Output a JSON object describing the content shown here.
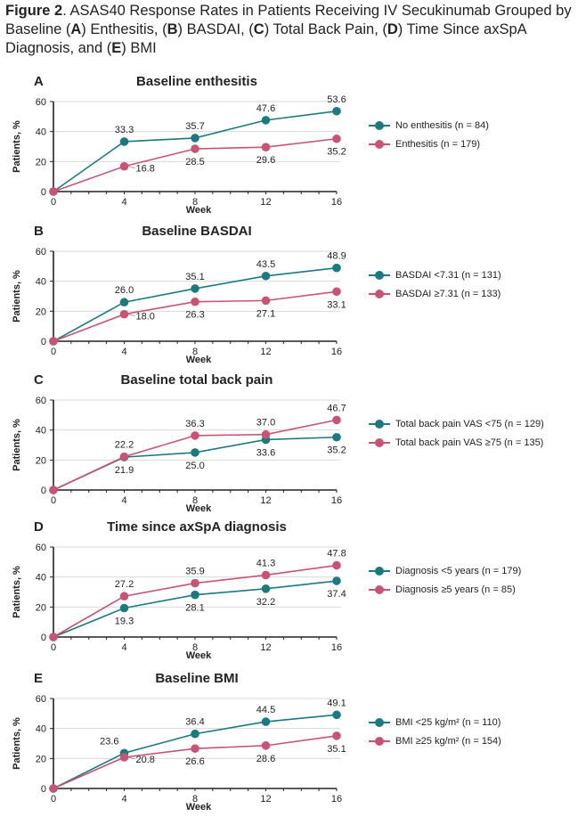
{
  "caption": {
    "figure_label": "Figure 2",
    "parts": [
      {
        "text": ". ASAS40 Response Rates in Patients Receiving IV Secukinumab Grouped by Baseline (",
        "bold": false
      },
      {
        "text": "A",
        "bold": true
      },
      {
        "text": ") Enthesitis, (",
        "bold": false
      },
      {
        "text": "B",
        "bold": true
      },
      {
        "text": ") BASDAI, (",
        "bold": false
      },
      {
        "text": "C",
        "bold": true
      },
      {
        "text": ") Total Back Pain, (",
        "bold": false
      },
      {
        "text": "D",
        "bold": true
      },
      {
        "text": ") Time Since axSpA Diagnosis, and (",
        "bold": false
      },
      {
        "text": "E",
        "bold": true
      },
      {
        "text": ") BMI",
        "bold": false
      }
    ]
  },
  "colors": {
    "teal": "#1a7a80",
    "pink": "#c95374",
    "grid": "#d9d9d9",
    "axis": "#222222"
  },
  "chart_data": [
    {
      "type": "line",
      "panel_letter": "A",
      "title": "Baseline enthesitis",
      "xlabel": "Week",
      "ylabel": "Patients, %",
      "x": [
        0,
        4,
        8,
        12,
        16
      ],
      "xticks": [
        "0",
        "4",
        "8",
        "12",
        "16"
      ],
      "yticks": [
        "0",
        "20",
        "40",
        "60"
      ],
      "ylim": [
        0,
        60
      ],
      "xlim": [
        0,
        16
      ],
      "grid": true,
      "legend_position": "right",
      "series": [
        {
          "name": "No enthesitis (n = 84)",
          "color": "teal",
          "values": [
            0,
            33.3,
            35.7,
            47.6,
            53.6
          ],
          "labels": [
            "",
            "33.3",
            "35.7",
            "47.6",
            "53.6"
          ],
          "label_pos": [
            "",
            "above",
            "above",
            "above",
            "above"
          ]
        },
        {
          "name": "Enthesitis (n = 179)",
          "color": "pink",
          "values": [
            0,
            16.8,
            28.5,
            29.6,
            35.2
          ],
          "labels": [
            "",
            "16.8",
            "28.5",
            "29.6",
            "35.2"
          ],
          "label_pos": [
            "",
            "right",
            "below",
            "below",
            "below"
          ]
        }
      ]
    },
    {
      "type": "line",
      "panel_letter": "B",
      "title": "Baseline BASDAI",
      "xlabel": "Week",
      "ylabel": "Patients, %",
      "x": [
        0,
        4,
        8,
        12,
        16
      ],
      "xticks": [
        "0",
        "4",
        "8",
        "12",
        "16"
      ],
      "yticks": [
        "0",
        "20",
        "40",
        "60"
      ],
      "ylim": [
        0,
        60
      ],
      "xlim": [
        0,
        16
      ],
      "grid": true,
      "legend_position": "right",
      "series": [
        {
          "name": "BASDAI <7.31 (n = 131)",
          "color": "teal",
          "values": [
            0,
            26.0,
            35.1,
            43.5,
            48.9
          ],
          "labels": [
            "",
            "26.0",
            "35.1",
            "43.5",
            "48.9"
          ],
          "label_pos": [
            "",
            "above",
            "above",
            "above",
            "above"
          ]
        },
        {
          "name": "BASDAI ≥7.31 (n = 133)",
          "color": "pink",
          "values": [
            0,
            18.0,
            26.3,
            27.1,
            33.1
          ],
          "labels": [
            "",
            "18.0",
            "26.3",
            "27.1",
            "33.1"
          ],
          "label_pos": [
            "",
            "right",
            "below",
            "below",
            "below"
          ]
        }
      ]
    },
    {
      "type": "line",
      "panel_letter": "C",
      "title": "Baseline total back pain",
      "xlabel": "Week",
      "ylabel": "Patients, %",
      "x": [
        0,
        4,
        8,
        12,
        16
      ],
      "xticks": [
        "0",
        "4",
        "8",
        "12",
        "16"
      ],
      "yticks": [
        "0",
        "20",
        "40",
        "60"
      ],
      "ylim": [
        0,
        60
      ],
      "xlim": [
        0,
        16
      ],
      "grid": true,
      "legend_position": "right",
      "series": [
        {
          "name": "Total back pain VAS <75 (n = 129)",
          "color": "teal",
          "values": [
            0,
            21.9,
            25.0,
            33.6,
            35.2
          ],
          "labels": [
            "",
            "21.9",
            "25.0",
            "33.6",
            "35.2"
          ],
          "label_pos": [
            "",
            "below",
            "below",
            "below",
            "below"
          ]
        },
        {
          "name": "Total back pain VAS ≥75 (n = 135)",
          "color": "pink",
          "values": [
            0,
            22.2,
            36.3,
            37.0,
            46.7
          ],
          "labels": [
            "",
            "22.2",
            "36.3",
            "37.0",
            "46.7"
          ],
          "label_pos": [
            "",
            "above",
            "above",
            "above",
            "above"
          ]
        }
      ]
    },
    {
      "type": "line",
      "panel_letter": "D",
      "title": "Time since axSpA diagnosis",
      "xlabel": "Week",
      "ylabel": "Patients, %",
      "x": [
        0,
        4,
        8,
        12,
        16
      ],
      "xticks": [
        "0",
        "4",
        "8",
        "12",
        "16"
      ],
      "yticks": [
        "0",
        "20",
        "40",
        "60"
      ],
      "ylim": [
        0,
        60
      ],
      "xlim": [
        0,
        16
      ],
      "grid": true,
      "legend_position": "right",
      "series": [
        {
          "name": "Diagnosis <5 years (n = 179)",
          "color": "teal",
          "values": [
            0,
            19.3,
            28.1,
            32.2,
            37.4
          ],
          "labels": [
            "",
            "19.3",
            "28.1",
            "32.2",
            "37.4"
          ],
          "label_pos": [
            "",
            "below",
            "below",
            "below",
            "below"
          ]
        },
        {
          "name": "Diagnosis ≥5 years (n = 85)",
          "color": "pink",
          "values": [
            0,
            27.2,
            35.9,
            41.3,
            47.8
          ],
          "labels": [
            "",
            "27.2",
            "35.9",
            "41.3",
            "47.8"
          ],
          "label_pos": [
            "",
            "above",
            "above",
            "above",
            "above"
          ]
        }
      ]
    },
    {
      "type": "line",
      "panel_letter": "E",
      "title": "Baseline BMI",
      "xlabel": "Week",
      "ylabel": "Patients, %",
      "x": [
        0,
        4,
        8,
        12,
        16
      ],
      "xticks": [
        "0",
        "4",
        "8",
        "12",
        "16"
      ],
      "yticks": [
        "0",
        "20",
        "40",
        "60"
      ],
      "ylim": [
        0,
        60
      ],
      "xlim": [
        0,
        16
      ],
      "grid": true,
      "legend_position": "right",
      "series": [
        {
          "name": "BMI <25 kg/m² (n = 110)",
          "color": "teal",
          "values": [
            0,
            23.6,
            36.4,
            44.5,
            49.1
          ],
          "labels": [
            "",
            "23.6",
            "36.4",
            "44.5",
            "49.1"
          ],
          "label_pos": [
            "",
            "above-left",
            "above",
            "above",
            "above"
          ]
        },
        {
          "name": "BMI ≥25 kg/m² (n = 154)",
          "color": "pink",
          "values": [
            0,
            20.8,
            26.6,
            28.6,
            35.1
          ],
          "labels": [
            "",
            "20.8",
            "26.6",
            "28.6",
            "35.1"
          ],
          "label_pos": [
            "",
            "right",
            "below",
            "below",
            "below"
          ]
        }
      ]
    }
  ]
}
